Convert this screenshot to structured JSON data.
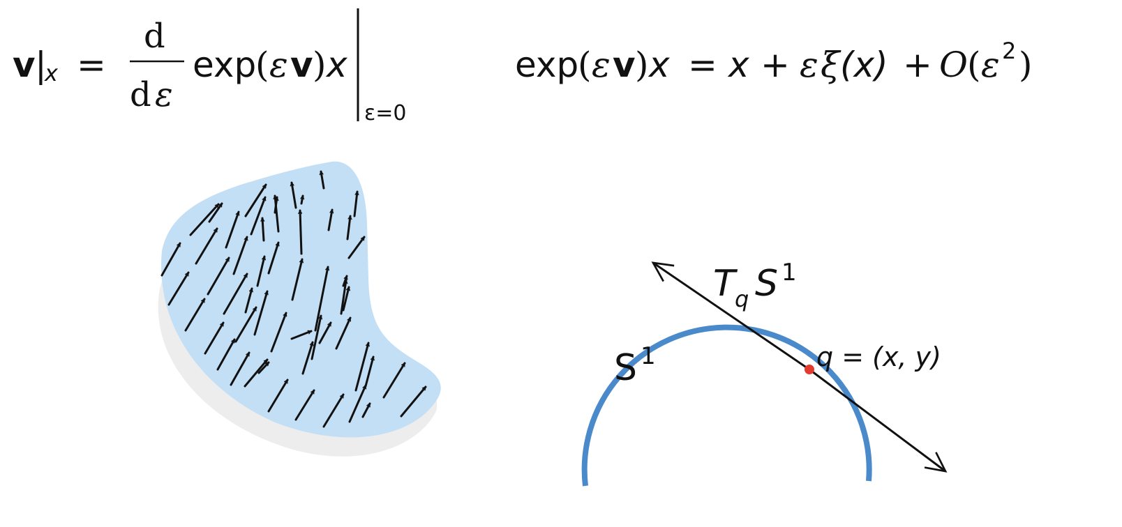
{
  "equations": {
    "left": {
      "v": "v",
      "bar": "|",
      "x_sub": "x",
      "equals": "=",
      "d_num": "d",
      "d_den": "d",
      "eps_den": "ε",
      "exp": "exp",
      "lparen": "(",
      "eps": "ε",
      "v2": "v",
      "rparen": ")",
      "x": "x",
      "eval_sub": "ε=0"
    },
    "right": {
      "exp": "exp",
      "lparen": "(",
      "eps": "ε",
      "v": "v",
      "rparen": ")",
      "x": "x",
      "equals": "=",
      "x2": "x",
      "plus1": "+",
      "eps2": "ε",
      "xi": "ξ",
      "paren_x": "(x)",
      "plus2": "+",
      "bigO": "O",
      "paren_open": "(",
      "eps3": "ε",
      "sup2": "2",
      "paren_close": ")"
    }
  },
  "circle_diagram": {
    "circle_label": "S",
    "circle_label_sup": "1",
    "tangent_label_T": "T",
    "tangent_label_sub": "q",
    "tangent_label_S": "S",
    "tangent_label_sup": "1",
    "point_label": "q = (x, y)",
    "colors": {
      "circle": "#4a8acb",
      "point": "#e23b2e",
      "tangent": "#111111"
    }
  },
  "vector_field": {
    "colors": {
      "region": "#c3dff5",
      "shadow": "#ededed",
      "arrows": "#111111"
    }
  }
}
